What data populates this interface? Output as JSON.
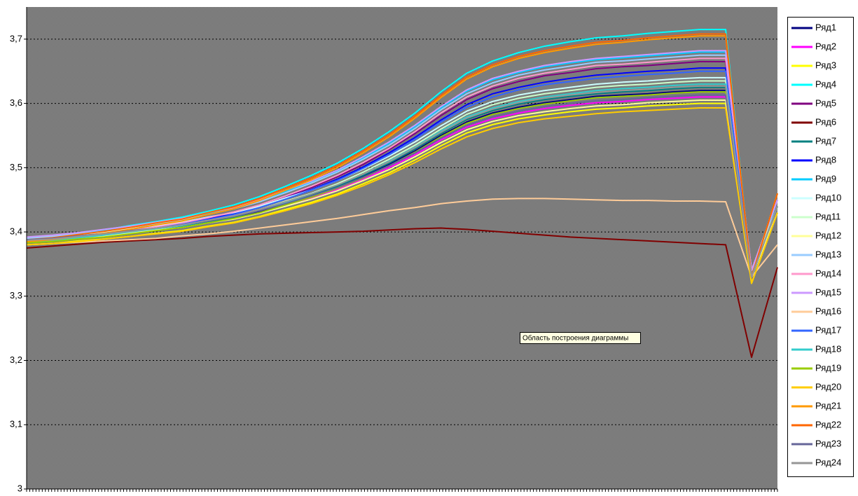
{
  "chart_data": {
    "type": "line",
    "annotation": "Область построения диаграммы",
    "categories": [
      null,
      null,
      null,
      null,
      null,
      null,
      null,
      null,
      null,
      null,
      null,
      null,
      null,
      null,
      null,
      null,
      null,
      null,
      null,
      null,
      null,
      null,
      null,
      null,
      null,
      null,
      null,
      null,
      null,
      null
    ],
    "ylim": [
      3,
      3.75
    ],
    "yticks": [
      3,
      {
        "value": 3.1,
        "label": "3,1"
      },
      {
        "value": 3.2,
        "label": "3,2"
      },
      {
        "value": 3.3,
        "label": "3,3"
      },
      {
        "value": 3.4,
        "label": "3,4"
      },
      {
        "value": 3.5,
        "label": "3,5"
      },
      {
        "value": 3.6,
        "label": "3,6"
      },
      {
        "value": 3.7,
        "label": "3,7"
      }
    ],
    "grid": true,
    "legend": "right",
    "series": [
      {
        "name": "Ряд1",
        "color": "#000080",
        "values": [
          3.385,
          3.387,
          3.391,
          3.394,
          3.399,
          3.404,
          3.409,
          3.416,
          3.423,
          3.432,
          3.444,
          3.456,
          3.47,
          3.486,
          3.505,
          3.526,
          3.55,
          3.571,
          3.585,
          3.594,
          3.601,
          3.606,
          3.611,
          3.613,
          3.615,
          3.618,
          3.62,
          3.62,
          3.33,
          3.44
        ]
      },
      {
        "name": "Ряд2",
        "color": "#FF00FF",
        "values": [
          3.385,
          3.387,
          3.391,
          3.394,
          3.399,
          3.403,
          3.408,
          3.414,
          3.421,
          3.43,
          3.441,
          3.453,
          3.466,
          3.482,
          3.5,
          3.52,
          3.543,
          3.563,
          3.576,
          3.585,
          3.592,
          3.597,
          3.601,
          3.603,
          3.606,
          3.608,
          3.61,
          3.61,
          3.33,
          3.44
        ]
      },
      {
        "name": "Ряд3",
        "color": "#FFFF00",
        "values": [
          3.38,
          3.382,
          3.386,
          3.389,
          3.393,
          3.398,
          3.402,
          3.409,
          3.415,
          3.424,
          3.435,
          3.446,
          3.459,
          3.475,
          3.492,
          3.512,
          3.534,
          3.554,
          3.567,
          3.576,
          3.582,
          3.587,
          3.591,
          3.593,
          3.596,
          3.598,
          3.6,
          3.6,
          3.32,
          3.43
        ]
      },
      {
        "name": "Ряд4",
        "color": "#00FFFF",
        "values": [
          3.39,
          3.393,
          3.398,
          3.403,
          3.41,
          3.416,
          3.423,
          3.432,
          3.442,
          3.455,
          3.471,
          3.488,
          3.507,
          3.53,
          3.556,
          3.585,
          3.618,
          3.647,
          3.666,
          3.679,
          3.689,
          3.696,
          3.702,
          3.705,
          3.709,
          3.712,
          3.715,
          3.715,
          3.33,
          3.46
        ]
      },
      {
        "name": "Ряд5",
        "color": "#800080",
        "values": [
          3.385,
          3.388,
          3.392,
          3.396,
          3.402,
          3.407,
          3.413,
          3.421,
          3.43,
          3.441,
          3.455,
          3.469,
          3.486,
          3.505,
          3.528,
          3.553,
          3.581,
          3.606,
          3.623,
          3.634,
          3.643,
          3.648,
          3.654,
          3.657,
          3.659,
          3.662,
          3.665,
          3.665,
          3.33,
          3.45
        ]
      },
      {
        "name": "Ряд6",
        "color": "#800000",
        "values": [
          3.375,
          3.378,
          3.381,
          3.384,
          3.386,
          3.388,
          3.39,
          3.393,
          3.395,
          3.397,
          3.398,
          3.399,
          3.4,
          3.401,
          3.403,
          3.405,
          3.406,
          3.404,
          3.401,
          3.398,
          3.395,
          3.392,
          3.39,
          3.388,
          3.386,
          3.384,
          3.382,
          3.38,
          3.205,
          3.345
        ]
      },
      {
        "name": "Ряд7",
        "color": "#008080",
        "values": [
          3.385,
          3.387,
          3.391,
          3.395,
          3.399,
          3.404,
          3.409,
          3.416,
          3.423,
          3.433,
          3.445,
          3.457,
          3.471,
          3.488,
          3.507,
          3.529,
          3.553,
          3.575,
          3.589,
          3.599,
          3.606,
          3.611,
          3.615,
          3.618,
          3.62,
          3.623,
          3.625,
          3.625,
          3.33,
          3.44
        ]
      },
      {
        "name": "Ряд8",
        "color": "#0000FF",
        "values": [
          3.385,
          3.388,
          3.392,
          3.396,
          3.401,
          3.407,
          3.412,
          3.42,
          3.428,
          3.439,
          3.453,
          3.466,
          3.482,
          3.501,
          3.523,
          3.547,
          3.574,
          3.598,
          3.615,
          3.625,
          3.633,
          3.639,
          3.644,
          3.647,
          3.65,
          3.652,
          3.655,
          3.655,
          3.33,
          3.44
        ]
      },
      {
        "name": "Ряд9",
        "color": "#00CCFF",
        "values": [
          3.39,
          3.393,
          3.397,
          3.402,
          3.407,
          3.413,
          3.419,
          3.428,
          3.436,
          3.448,
          3.463,
          3.477,
          3.494,
          3.515,
          3.538,
          3.564,
          3.593,
          3.619,
          3.637,
          3.648,
          3.657,
          3.663,
          3.668,
          3.671,
          3.674,
          3.677,
          3.68,
          3.68,
          3.33,
          3.45
        ]
      },
      {
        "name": "Ряд10",
        "color": "#CCFFFF",
        "values": [
          3.39,
          3.393,
          3.396,
          3.4,
          3.405,
          3.41,
          3.415,
          3.423,
          3.43,
          3.44,
          3.453,
          3.465,
          3.48,
          3.498,
          3.518,
          3.54,
          3.565,
          3.588,
          3.603,
          3.613,
          3.62,
          3.625,
          3.63,
          3.633,
          3.635,
          3.638,
          3.64,
          3.64,
          3.34,
          3.45
        ]
      },
      {
        "name": "Ряд11",
        "color": "#CCFFCC",
        "values": [
          3.385,
          3.388,
          3.391,
          3.395,
          3.4,
          3.405,
          3.41,
          3.418,
          3.425,
          3.435,
          3.448,
          3.46,
          3.475,
          3.493,
          3.513,
          3.535,
          3.56,
          3.583,
          3.598,
          3.608,
          3.615,
          3.62,
          3.625,
          3.628,
          3.63,
          3.633,
          3.635,
          3.635,
          3.34,
          3.44
        ]
      },
      {
        "name": "Ряд12",
        "color": "#FFFF99",
        "values": [
          3.385,
          3.387,
          3.391,
          3.394,
          3.398,
          3.403,
          3.407,
          3.414,
          3.42,
          3.429,
          3.44,
          3.451,
          3.464,
          3.48,
          3.497,
          3.517,
          3.539,
          3.559,
          3.572,
          3.581,
          3.587,
          3.592,
          3.596,
          3.598,
          3.601,
          3.603,
          3.605,
          3.605,
          3.33,
          3.43
        ]
      },
      {
        "name": "Ряд13",
        "color": "#99CCFF",
        "values": [
          3.39,
          3.393,
          3.397,
          3.401,
          3.407,
          3.413,
          3.419,
          3.427,
          3.436,
          3.447,
          3.461,
          3.476,
          3.493,
          3.513,
          3.535,
          3.561,
          3.59,
          3.615,
          3.632,
          3.644,
          3.652,
          3.658,
          3.664,
          3.666,
          3.669,
          3.672,
          3.675,
          3.675,
          3.34,
          3.45
        ]
      },
      {
        "name": "Ряд14",
        "color": "#FF99CC",
        "values": [
          3.385,
          3.388,
          3.392,
          3.396,
          3.402,
          3.408,
          3.414,
          3.422,
          3.431,
          3.442,
          3.456,
          3.471,
          3.488,
          3.508,
          3.53,
          3.556,
          3.585,
          3.61,
          3.627,
          3.639,
          3.647,
          3.653,
          3.659,
          3.661,
          3.664,
          3.667,
          3.67,
          3.67,
          3.34,
          3.45
        ]
      },
      {
        "name": "Ряд15",
        "color": "#CC99FF",
        "values": [
          3.392,
          3.395,
          3.399,
          3.404,
          3.409,
          3.415,
          3.421,
          3.43,
          3.438,
          3.45,
          3.465,
          3.479,
          3.496,
          3.517,
          3.54,
          3.566,
          3.595,
          3.621,
          3.639,
          3.65,
          3.659,
          3.665,
          3.67,
          3.673,
          3.676,
          3.679,
          3.682,
          3.682,
          3.34,
          3.45
        ]
      },
      {
        "name": "Ряд16",
        "color": "#FFCC99",
        "values": [
          3.38,
          3.382,
          3.384,
          3.386,
          3.388,
          3.39,
          3.394,
          3.397,
          3.401,
          3.406,
          3.411,
          3.416,
          3.421,
          3.427,
          3.433,
          3.438,
          3.444,
          3.448,
          3.451,
          3.452,
          3.452,
          3.451,
          3.45,
          3.449,
          3.449,
          3.448,
          3.448,
          3.447,
          3.33,
          3.38
        ]
      },
      {
        "name": "Ряд17",
        "color": "#3366FF",
        "values": [
          3.385,
          3.388,
          3.392,
          3.396,
          3.401,
          3.406,
          3.412,
          3.419,
          3.427,
          3.438,
          3.451,
          3.465,
          3.48,
          3.499,
          3.52,
          3.544,
          3.571,
          3.594,
          3.61,
          3.621,
          3.629,
          3.634,
          3.639,
          3.642,
          3.645,
          3.647,
          3.65,
          3.65,
          3.33,
          3.44
        ]
      },
      {
        "name": "Ряд18",
        "color": "#33CCCC",
        "values": [
          3.385,
          3.387,
          3.391,
          3.395,
          3.4,
          3.405,
          3.41,
          3.417,
          3.424,
          3.434,
          3.446,
          3.459,
          3.473,
          3.49,
          3.51,
          3.532,
          3.557,
          3.579,
          3.593,
          3.603,
          3.61,
          3.615,
          3.62,
          3.623,
          3.625,
          3.628,
          3.63,
          3.63,
          3.33,
          3.44
        ]
      },
      {
        "name": "Ряд19",
        "color": "#99CC00",
        "values": [
          3.383,
          3.385,
          3.389,
          3.392,
          3.397,
          3.402,
          3.407,
          3.414,
          3.421,
          3.43,
          3.442,
          3.454,
          3.468,
          3.484,
          3.503,
          3.524,
          3.548,
          3.569,
          3.583,
          3.592,
          3.599,
          3.604,
          3.609,
          3.611,
          3.613,
          3.616,
          3.618,
          3.618,
          3.33,
          3.44
        ]
      },
      {
        "name": "Ряд20",
        "color": "#FFCC00",
        "values": [
          3.38,
          3.382,
          3.385,
          3.389,
          3.393,
          3.397,
          3.401,
          3.408,
          3.414,
          3.423,
          3.433,
          3.444,
          3.457,
          3.472,
          3.489,
          3.508,
          3.529,
          3.548,
          3.561,
          3.57,
          3.576,
          3.58,
          3.584,
          3.587,
          3.589,
          3.591,
          3.593,
          3.593,
          3.32,
          3.43
        ]
      },
      {
        "name": "Ряд21",
        "color": "#FF9900",
        "values": [
          3.385,
          3.388,
          3.393,
          3.398,
          3.404,
          3.411,
          3.417,
          3.427,
          3.436,
          3.449,
          3.465,
          3.481,
          3.5,
          3.523,
          3.548,
          3.577,
          3.609,
          3.638,
          3.657,
          3.67,
          3.679,
          3.686,
          3.692,
          3.695,
          3.699,
          3.702,
          3.705,
          3.705,
          3.33,
          3.46
        ]
      },
      {
        "name": "Ряд22",
        "color": "#FF6600",
        "values": [
          3.388,
          3.391,
          3.396,
          3.401,
          3.407,
          3.414,
          3.42,
          3.43,
          3.439,
          3.452,
          3.468,
          3.484,
          3.503,
          3.526,
          3.551,
          3.58,
          3.612,
          3.641,
          3.66,
          3.673,
          3.682,
          3.689,
          3.695,
          3.698,
          3.702,
          3.705,
          3.708,
          3.708,
          3.33,
          3.46
        ]
      },
      {
        "name": "Ряд23",
        "color": "#666699",
        "values": [
          3.388,
          3.39,
          3.394,
          3.397,
          3.402,
          3.406,
          3.411,
          3.417,
          3.424,
          3.433,
          3.444,
          3.456,
          3.469,
          3.485,
          3.503,
          3.523,
          3.546,
          3.566,
          3.579,
          3.588,
          3.595,
          3.6,
          3.604,
          3.606,
          3.609,
          3.611,
          3.613,
          3.613,
          3.33,
          3.44
        ]
      },
      {
        "name": "Ряд24",
        "color": "#969696",
        "values": [
          3.387,
          3.389,
          3.393,
          3.397,
          3.401,
          3.406,
          3.411,
          3.418,
          3.425,
          3.435,
          3.447,
          3.459,
          3.473,
          3.49,
          3.509,
          3.531,
          3.555,
          3.577,
          3.591,
          3.601,
          3.608,
          3.613,
          3.617,
          3.62,
          3.622,
          3.625,
          3.627,
          3.627,
          3.33,
          3.44
        ]
      }
    ]
  }
}
